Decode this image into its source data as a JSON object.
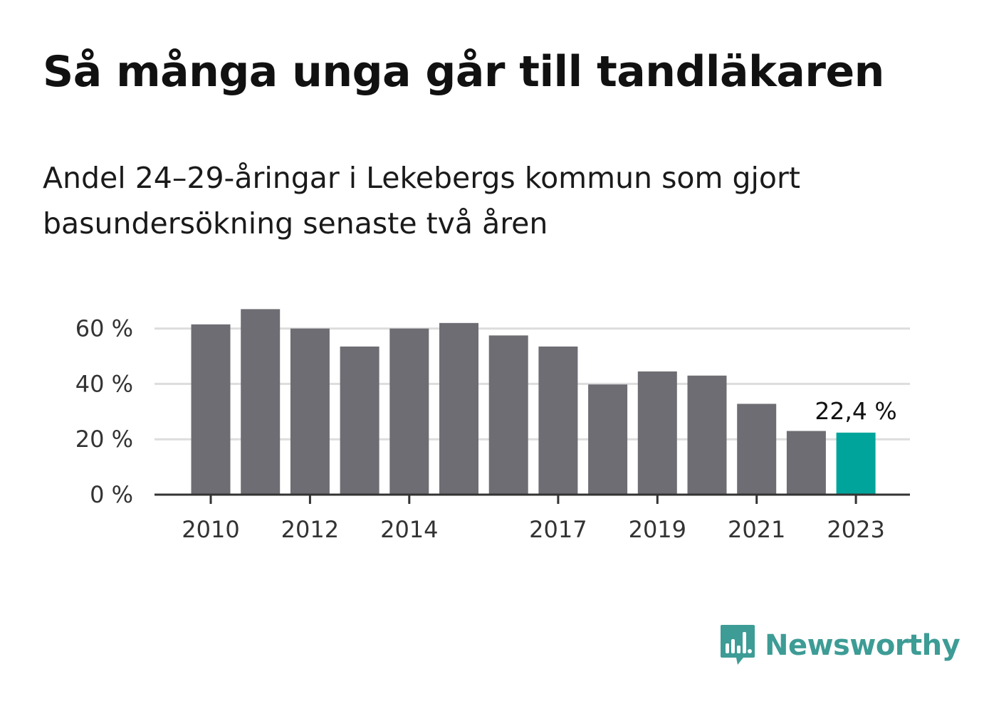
{
  "title": "Så många unga går till tandläkaren",
  "subtitle": "Andel 24–29-åringar i Lekebergs kommun som gjort basundersökning senaste två åren",
  "brand": {
    "name": "Newsworthy",
    "icon": "bar-chart-speech-bubble-icon",
    "color": "#3d9c95"
  },
  "chart_data": {
    "type": "bar",
    "categories": [
      "2010",
      "2011",
      "2012",
      "2013",
      "2014",
      "2015",
      "2016",
      "2017",
      "2018",
      "2019",
      "2020",
      "2021",
      "2022",
      "2023"
    ],
    "values": [
      61.5,
      67,
      60,
      53.5,
      60,
      62,
      57.5,
      53.5,
      39.8,
      44.5,
      43,
      32.8,
      23,
      22.4
    ],
    "x_tick_labels": [
      "2010",
      "2012",
      "2014",
      "2017",
      "2019",
      "2021",
      "2023"
    ],
    "y_ticks": [
      0,
      20,
      40,
      60
    ],
    "y_tick_labels": [
      "0 %",
      "20 %",
      "40 %",
      "60 %"
    ],
    "ylim": [
      0,
      70
    ],
    "highlight_index": 13,
    "highlight_label": "22,4 %",
    "bar_color": "#6e6d73",
    "highlight_color": "#00a49a",
    "grid": true,
    "xlabel": "",
    "ylabel": ""
  }
}
